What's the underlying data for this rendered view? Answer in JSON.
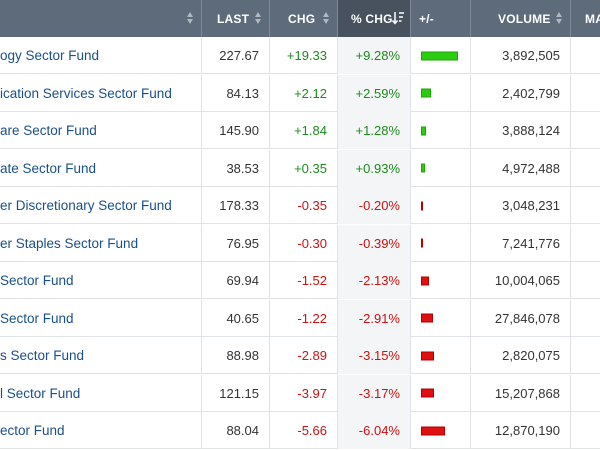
{
  "header": {
    "last": "LAST",
    "chg": "CHG",
    "pct_chg": "% CHG",
    "plusminus": "+/-",
    "volume": "VOLUME",
    "next_partial": "MA"
  },
  "colors": {
    "header_bg": "#5e6b7b",
    "header_active_bg": "#48525f",
    "positive": "#1e8a1e",
    "negative": "#cc1111",
    "name_link": "#1b4f8a"
  },
  "rows": [
    {
      "name": "ogy Sector Fund",
      "last": "227.67",
      "chg": "+19.33",
      "pct": "+9.28%",
      "volume": "3,892,505",
      "pct_value": 9.28
    },
    {
      "name": "ication Services Sector Fund",
      "last": "84.13",
      "chg": "+2.12",
      "pct": "+2.59%",
      "volume": "2,402,799",
      "pct_value": 2.59
    },
    {
      "name": "are Sector Fund",
      "last": "145.90",
      "chg": "+1.84",
      "pct": "+1.28%",
      "volume": "3,888,124",
      "pct_value": 1.28
    },
    {
      "name": "ate Sector Fund",
      "last": "38.53",
      "chg": "+0.35",
      "pct": "+0.93%",
      "volume": "4,972,488",
      "pct_value": 0.93
    },
    {
      "name": "er Discretionary Sector Fund",
      "last": "178.33",
      "chg": "-0.35",
      "pct": "-0.20%",
      "volume": "3,048,231",
      "pct_value": -0.2
    },
    {
      "name": "er Staples Sector Fund",
      "last": "76.95",
      "chg": "-0.30",
      "pct": "-0.39%",
      "volume": "7,241,776",
      "pct_value": -0.39
    },
    {
      "name": "Sector Fund",
      "last": "69.94",
      "chg": "-1.52",
      "pct": "-2.13%",
      "volume": "10,004,065",
      "pct_value": -2.13
    },
    {
      "name": "Sector Fund",
      "last": "40.65",
      "chg": "-1.22",
      "pct": "-2.91%",
      "volume": "27,846,078",
      "pct_value": -2.91
    },
    {
      "name": "s Sector Fund",
      "last": "88.98",
      "chg": "-2.89",
      "pct": "-3.15%",
      "volume": "2,820,075",
      "pct_value": -3.15
    },
    {
      "name": "l Sector Fund",
      "last": "121.15",
      "chg": "-3.97",
      "pct": "-3.17%",
      "volume": "15,207,868",
      "pct_value": -3.17
    },
    {
      "name": "ector Fund",
      "last": "88.04",
      "chg": "-5.66",
      "pct": "-6.04%",
      "volume": "12,870,190",
      "pct_value": -6.04
    }
  ]
}
